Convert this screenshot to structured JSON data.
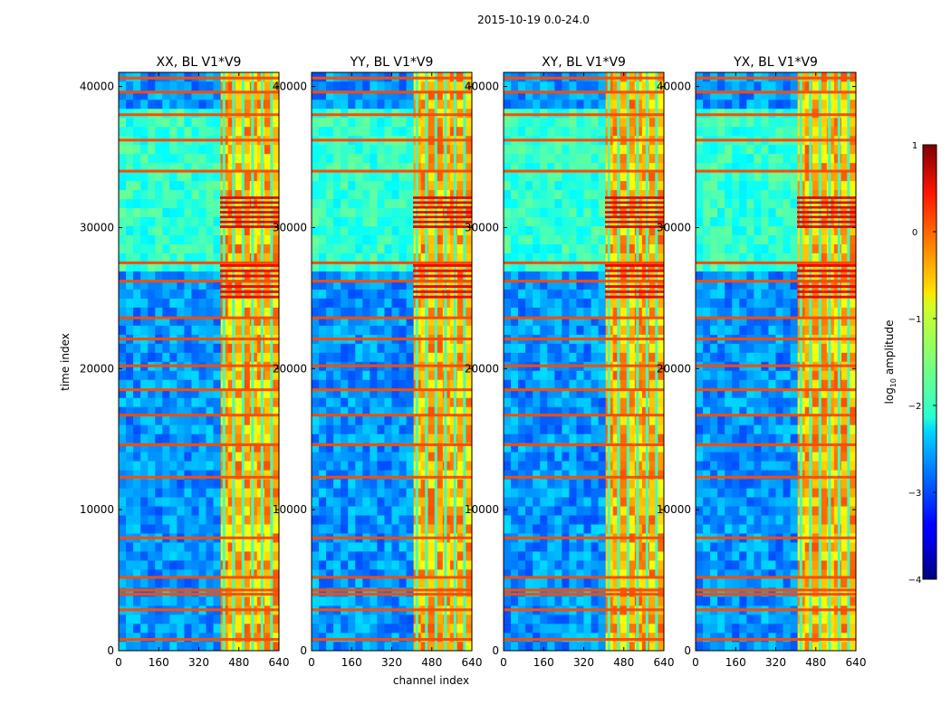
{
  "chart_data": {
    "type": "heatmap",
    "suptitle": "2015-10-19 0.0-24.0",
    "xlabel": "channel index",
    "ylabel": "time index",
    "colorbar_label": "log$_{10}$ amplitude",
    "colorbar_label_parts": {
      "prefix": "log",
      "sub": "10",
      "suffix": " amplitude"
    },
    "colorbar_range": [
      -4,
      1
    ],
    "colorbar_ticks": [
      -4,
      -3,
      -2,
      -1,
      0,
      1
    ],
    "colorbar_tick_labels": [
      "−4",
      "−3",
      "−2",
      "−1",
      "0",
      "1"
    ],
    "colormap": "jet",
    "xlim": [
      0,
      640
    ],
    "ylim": [
      0,
      41000
    ],
    "xticks": [
      0,
      160,
      320,
      480,
      640
    ],
    "yticks": [
      0,
      10000,
      20000,
      30000,
      40000
    ],
    "panels": [
      {
        "title": "XX, BL V1*V9",
        "y_tick_labels": [
          "0",
          "10000",
          "20000",
          "30000",
          "40000"
        ]
      },
      {
        "title": "YY, BL V1*V9",
        "y_tick_labels": [
          "0",
          "10000",
          "20000",
          "30000",
          "40000"
        ]
      },
      {
        "title": "XY, BL V1*V9",
        "y_tick_labels": [
          "0",
          "10000",
          "20000",
          "30000",
          "40000"
        ]
      },
      {
        "title": "YX, BL V1*V9",
        "y_tick_labels": [
          "0",
          "10000",
          "20000",
          "30000",
          "40000"
        ]
      }
    ],
    "rfi_channel_band": [
      405,
      640
    ],
    "flagged_time_rows": [
      800,
      2900,
      4000,
      4300,
      5200,
      8000,
      12300,
      14600,
      16700,
      18500,
      20200,
      22100,
      23600,
      26200,
      27500,
      34000,
      36200,
      38000,
      39600,
      40600
    ],
    "high_amplitude_blocks": [
      {
        "time_range": [
          29800,
          32200
        ],
        "channel_range": [
          405,
          640
        ],
        "log_amp": 0.5
      },
      {
        "time_range": [
          24800,
          27400
        ],
        "channel_range": [
          405,
          640
        ],
        "log_amp": 0.4
      }
    ]
  }
}
